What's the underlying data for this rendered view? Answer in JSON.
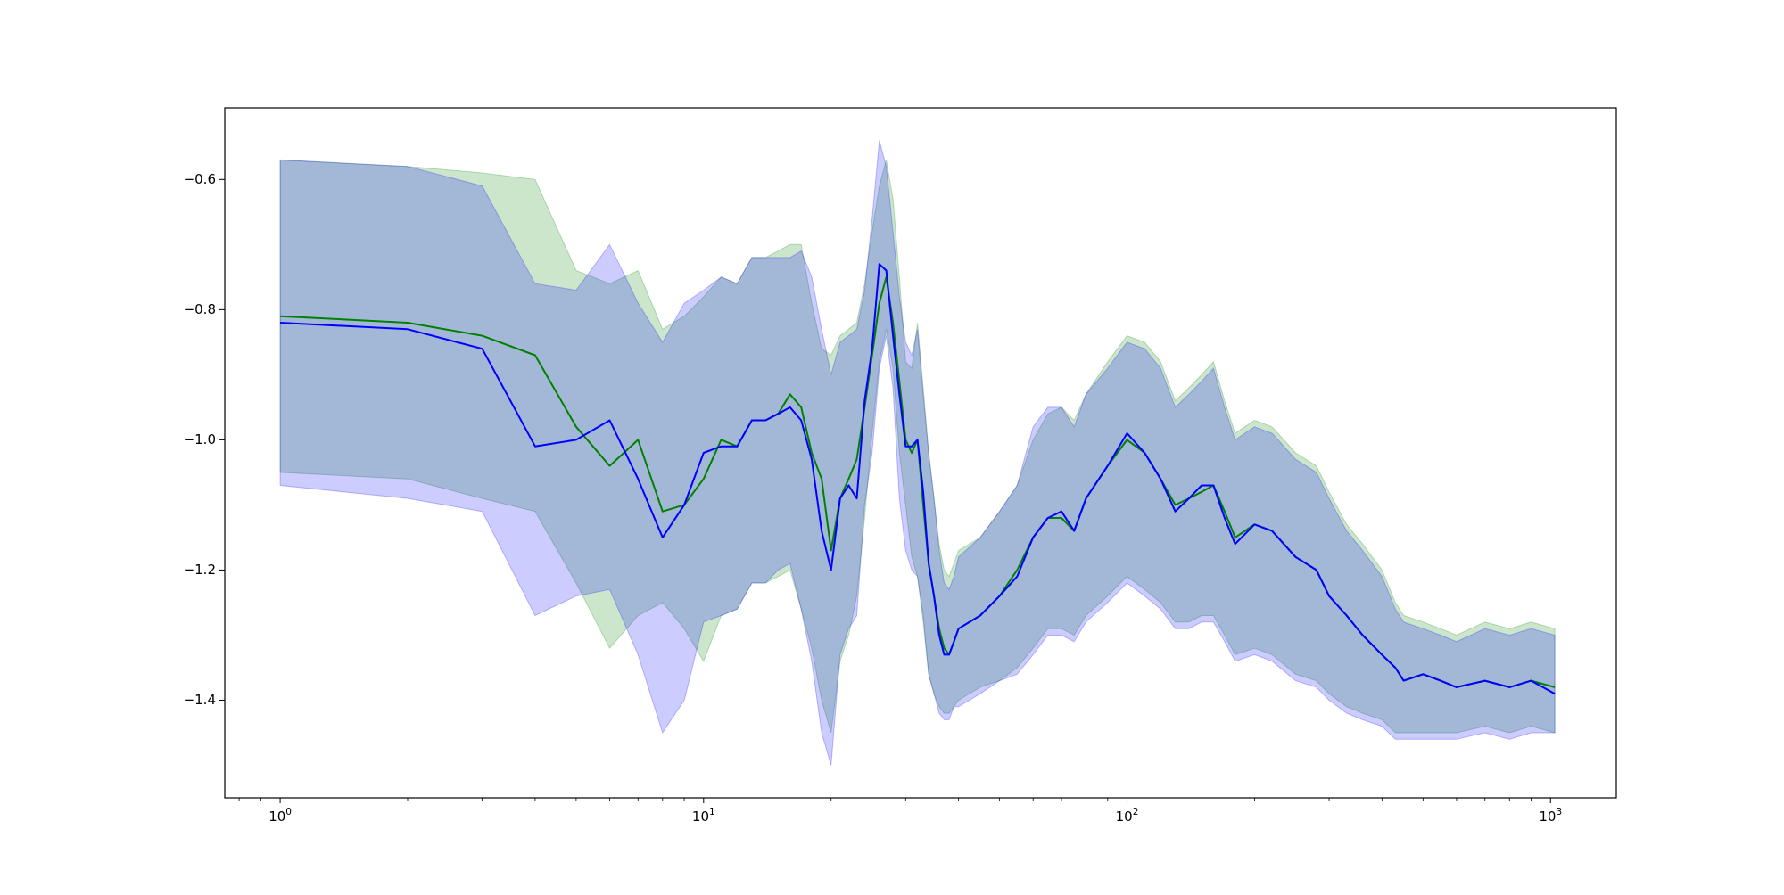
{
  "chart_data": {
    "type": "line",
    "xscale": "log",
    "xlim": [
      0.74,
      1430
    ],
    "ylim": [
      -1.55,
      -0.49
    ],
    "grid": false,
    "legend": "none",
    "title": "",
    "xlabel": "",
    "ylabel": "",
    "x_ticks": [
      {
        "value": 1,
        "base": "10",
        "exp": "0"
      },
      {
        "value": 10,
        "base": "10",
        "exp": "1"
      },
      {
        "value": 100,
        "base": "10",
        "exp": "2"
      },
      {
        "value": 1000,
        "base": "10",
        "exp": "3"
      }
    ],
    "y_ticks": [
      {
        "value": -0.6,
        "label": "−0.6"
      },
      {
        "value": -0.8,
        "label": "−0.8"
      },
      {
        "value": -1.0,
        "label": "−1.0"
      },
      {
        "value": -1.2,
        "label": "−1.2"
      },
      {
        "value": -1.4,
        "label": "−1.4"
      }
    ],
    "series": [
      {
        "color": "#008000",
        "band_color": "#008000",
        "band_opacity": 0.2,
        "x": [
          1,
          2,
          3,
          4,
          5,
          6,
          7,
          8,
          9,
          10,
          11,
          12,
          13,
          14,
          15,
          16,
          17,
          18,
          19,
          20,
          21,
          22,
          23,
          24,
          25,
          26,
          27,
          28,
          29,
          30,
          31,
          32,
          33,
          34,
          35,
          36,
          37,
          38,
          39,
          40,
          45,
          50,
          55,
          60,
          65,
          70,
          75,
          80,
          90,
          100,
          110,
          120,
          130,
          140,
          150,
          160,
          170,
          180,
          200,
          220,
          250,
          280,
          300,
          330,
          360,
          400,
          430,
          450,
          500,
          550,
          600,
          700,
          800,
          900,
          1024
        ],
        "y": [
          -0.81,
          -0.82,
          -0.84,
          -0.87,
          -0.98,
          -1.04,
          -1.0,
          -1.11,
          -1.1,
          -1.06,
          -1.0,
          -1.01,
          -0.97,
          -0.97,
          -0.96,
          -0.93,
          -0.95,
          -1.02,
          -1.06,
          -1.17,
          -1.09,
          -1.06,
          -1.03,
          -0.95,
          -0.87,
          -0.79,
          -0.75,
          -0.82,
          -0.91,
          -1.0,
          -1.02,
          -1.0,
          -1.1,
          -1.19,
          -1.24,
          -1.29,
          -1.32,
          -1.33,
          -1.31,
          -1.29,
          -1.27,
          -1.24,
          -1.2,
          -1.15,
          -1.12,
          -1.12,
          -1.14,
          -1.09,
          -1.04,
          -1.0,
          -1.02,
          -1.06,
          -1.1,
          -1.09,
          -1.08,
          -1.07,
          -1.11,
          -1.15,
          -1.13,
          -1.14,
          -1.18,
          -1.2,
          -1.24,
          -1.27,
          -1.3,
          -1.33,
          -1.35,
          -1.37,
          -1.36,
          -1.37,
          -1.38,
          -1.37,
          -1.38,
          -1.37,
          -1.38
        ],
        "lower": [
          -1.05,
          -1.06,
          -1.09,
          -1.11,
          -1.22,
          -1.32,
          -1.27,
          -1.25,
          -1.29,
          -1.34,
          -1.27,
          -1.26,
          -1.22,
          -1.22,
          -1.21,
          -1.2,
          -1.26,
          -1.32,
          -1.4,
          -1.45,
          -1.34,
          -1.3,
          -1.24,
          -1.12,
          -0.99,
          -0.88,
          -0.83,
          -0.89,
          -1.02,
          -1.1,
          -1.18,
          -1.21,
          -1.28,
          -1.36,
          -1.39,
          -1.41,
          -1.42,
          -1.42,
          -1.41,
          -1.4,
          -1.38,
          -1.37,
          -1.35,
          -1.32,
          -1.29,
          -1.29,
          -1.3,
          -1.27,
          -1.24,
          -1.21,
          -1.23,
          -1.25,
          -1.28,
          -1.28,
          -1.27,
          -1.27,
          -1.3,
          -1.33,
          -1.32,
          -1.33,
          -1.36,
          -1.37,
          -1.39,
          -1.41,
          -1.42,
          -1.43,
          -1.45,
          -1.45,
          -1.45,
          -1.45,
          -1.45,
          -1.44,
          -1.45,
          -1.44,
          -1.45
        ],
        "upper": [
          -0.57,
          -0.58,
          -0.59,
          -0.6,
          -0.74,
          -0.76,
          -0.74,
          -0.83,
          -0.81,
          -0.78,
          -0.75,
          -0.76,
          -0.72,
          -0.72,
          -0.71,
          -0.7,
          -0.7,
          -0.79,
          -0.86,
          -0.87,
          -0.84,
          -0.83,
          -0.82,
          -0.76,
          -0.68,
          -0.61,
          -0.57,
          -0.63,
          -0.75,
          -0.88,
          -0.89,
          -0.82,
          -0.92,
          -1.02,
          -1.09,
          -1.16,
          -1.2,
          -1.21,
          -1.19,
          -1.17,
          -1.15,
          -1.11,
          -1.07,
          -1.0,
          -0.96,
          -0.95,
          -0.97,
          -0.93,
          -0.88,
          -0.84,
          -0.85,
          -0.88,
          -0.94,
          -0.92,
          -0.9,
          -0.88,
          -0.94,
          -0.99,
          -0.97,
          -0.98,
          -1.02,
          -1.04,
          -1.08,
          -1.13,
          -1.16,
          -1.2,
          -1.25,
          -1.27,
          -1.28,
          -1.29,
          -1.3,
          -1.28,
          -1.29,
          -1.28,
          -1.29
        ]
      },
      {
        "color": "#0000ff",
        "band_color": "#0000ff",
        "band_opacity": 0.2,
        "x": [
          1,
          2,
          3,
          4,
          5,
          6,
          7,
          8,
          9,
          10,
          11,
          12,
          13,
          14,
          15,
          16,
          17,
          18,
          19,
          20,
          21,
          22,
          23,
          24,
          25,
          26,
          27,
          28,
          29,
          30,
          31,
          32,
          33,
          34,
          35,
          36,
          37,
          38,
          39,
          40,
          45,
          50,
          55,
          60,
          65,
          70,
          75,
          80,
          90,
          100,
          110,
          120,
          130,
          140,
          150,
          160,
          170,
          180,
          200,
          220,
          250,
          280,
          300,
          330,
          360,
          400,
          430,
          450,
          500,
          550,
          600,
          700,
          800,
          900,
          1024
        ],
        "y": [
          -0.82,
          -0.83,
          -0.86,
          -1.01,
          -1.0,
          -0.97,
          -1.06,
          -1.15,
          -1.1,
          -1.02,
          -1.01,
          -1.01,
          -0.97,
          -0.97,
          -0.96,
          -0.95,
          -0.97,
          -1.03,
          -1.14,
          -1.2,
          -1.09,
          -1.07,
          -1.09,
          -0.94,
          -0.86,
          -0.73,
          -0.74,
          -0.84,
          -0.93,
          -1.01,
          -1.01,
          -1.0,
          -1.08,
          -1.19,
          -1.24,
          -1.3,
          -1.33,
          -1.33,
          -1.31,
          -1.29,
          -1.27,
          -1.24,
          -1.21,
          -1.15,
          -1.12,
          -1.11,
          -1.14,
          -1.09,
          -1.04,
          -0.99,
          -1.02,
          -1.06,
          -1.11,
          -1.09,
          -1.07,
          -1.07,
          -1.12,
          -1.16,
          -1.13,
          -1.14,
          -1.18,
          -1.2,
          -1.24,
          -1.27,
          -1.3,
          -1.33,
          -1.35,
          -1.37,
          -1.36,
          -1.37,
          -1.38,
          -1.37,
          -1.38,
          -1.37,
          -1.39
        ],
        "lower": [
          -1.07,
          -1.09,
          -1.11,
          -1.27,
          -1.24,
          -1.23,
          -1.33,
          -1.45,
          -1.4,
          -1.28,
          -1.27,
          -1.26,
          -1.22,
          -1.22,
          -1.2,
          -1.19,
          -1.26,
          -1.34,
          -1.45,
          -1.5,
          -1.33,
          -1.29,
          -1.27,
          -1.1,
          -1.02,
          -0.89,
          -0.84,
          -0.92,
          -1.09,
          -1.17,
          -1.2,
          -1.21,
          -1.27,
          -1.36,
          -1.39,
          -1.42,
          -1.43,
          -1.43,
          -1.41,
          -1.41,
          -1.39,
          -1.37,
          -1.36,
          -1.33,
          -1.3,
          -1.3,
          -1.31,
          -1.28,
          -1.25,
          -1.22,
          -1.24,
          -1.26,
          -1.29,
          -1.29,
          -1.28,
          -1.28,
          -1.31,
          -1.34,
          -1.33,
          -1.34,
          -1.37,
          -1.38,
          -1.4,
          -1.42,
          -1.43,
          -1.44,
          -1.46,
          -1.46,
          -1.46,
          -1.46,
          -1.46,
          -1.45,
          -1.46,
          -1.45,
          -1.45
        ],
        "upper": [
          -0.57,
          -0.58,
          -0.61,
          -0.76,
          -0.77,
          -0.7,
          -0.79,
          -0.85,
          -0.79,
          -0.77,
          -0.75,
          -0.76,
          -0.72,
          -0.72,
          -0.72,
          -0.72,
          -0.71,
          -0.75,
          -0.83,
          -0.9,
          -0.85,
          -0.84,
          -0.83,
          -0.77,
          -0.66,
          -0.54,
          -0.58,
          -0.68,
          -0.78,
          -0.85,
          -0.87,
          -0.83,
          -0.93,
          -1.02,
          -1.09,
          -1.17,
          -1.22,
          -1.23,
          -1.21,
          -1.18,
          -1.15,
          -1.11,
          -1.07,
          -0.98,
          -0.95,
          -0.95,
          -0.98,
          -0.93,
          -0.89,
          -0.85,
          -0.86,
          -0.89,
          -0.95,
          -0.93,
          -0.91,
          -0.89,
          -0.95,
          -1.0,
          -0.98,
          -0.99,
          -1.03,
          -1.05,
          -1.09,
          -1.14,
          -1.17,
          -1.21,
          -1.26,
          -1.28,
          -1.29,
          -1.3,
          -1.31,
          -1.29,
          -1.3,
          -1.29,
          -1.3
        ]
      }
    ]
  }
}
